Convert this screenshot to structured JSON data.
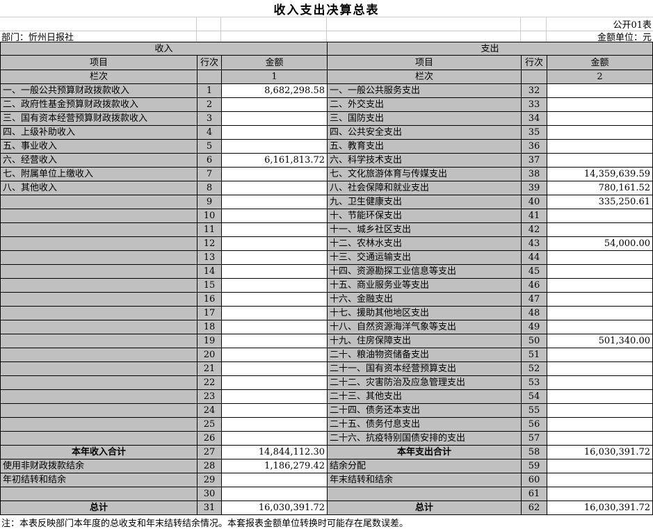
{
  "title": "收入支出决算总表",
  "header": {
    "sheet_code": "公开01表",
    "department": "部门：忻州日报社",
    "unit": "金额单位：元"
  },
  "table": {
    "col_headers": {
      "item": "项目",
      "line": "行次",
      "amount": "金额"
    },
    "lanci_label": "栏次",
    "left": {
      "section": "收入",
      "lanci_value": "1",
      "rows": [
        {
          "item": "一、一般公共预算财政拨款收入",
          "line": "1",
          "amount": "8,682,298.58"
        },
        {
          "item": "二、政府性基金预算财政拨款收入",
          "line": "2",
          "amount": ""
        },
        {
          "item": "三、国有资本经营预算财政拨款收入",
          "line": "3",
          "amount": ""
        },
        {
          "item": "四、上级补助收入",
          "line": "4",
          "amount": ""
        },
        {
          "item": "五、事业收入",
          "line": "5",
          "amount": ""
        },
        {
          "item": "六、经营收入",
          "line": "6",
          "amount": "6,161,813.72"
        },
        {
          "item": "七、附属单位上缴收入",
          "line": "7",
          "amount": ""
        },
        {
          "item": "八、其他收入",
          "line": "8",
          "amount": ""
        },
        {
          "item": "",
          "line": "9",
          "amount": ""
        },
        {
          "item": "",
          "line": "10",
          "amount": ""
        },
        {
          "item": "",
          "line": "11",
          "amount": ""
        },
        {
          "item": "",
          "line": "12",
          "amount": ""
        },
        {
          "item": "",
          "line": "13",
          "amount": ""
        },
        {
          "item": "",
          "line": "14",
          "amount": ""
        },
        {
          "item": "",
          "line": "15",
          "amount": ""
        },
        {
          "item": "",
          "line": "16",
          "amount": ""
        },
        {
          "item": "",
          "line": "17",
          "amount": ""
        },
        {
          "item": "",
          "line": "18",
          "amount": ""
        },
        {
          "item": "",
          "line": "19",
          "amount": ""
        },
        {
          "item": "",
          "line": "20",
          "amount": ""
        },
        {
          "item": "",
          "line": "21",
          "amount": ""
        },
        {
          "item": "",
          "line": "22",
          "amount": ""
        },
        {
          "item": "",
          "line": "23",
          "amount": ""
        },
        {
          "item": "",
          "line": "24",
          "amount": ""
        },
        {
          "item": "",
          "line": "25",
          "amount": ""
        },
        {
          "item": "",
          "line": "26",
          "amount": ""
        },
        {
          "item": "本年收入合计",
          "line": "27",
          "amount": "14,844,112.30",
          "bold": true
        },
        {
          "item": "使用非财政拨款结余",
          "line": "28",
          "amount": "1,186,279.42"
        },
        {
          "item": "年初结转和结余",
          "line": "29",
          "amount": ""
        },
        {
          "item": "",
          "line": "30",
          "amount": ""
        },
        {
          "item": "总计",
          "line": "31",
          "amount": "16,030,391.72",
          "bold": true
        }
      ]
    },
    "right": {
      "section": "支出",
      "lanci_value": "2",
      "rows": [
        {
          "item": "一、一般公共服务支出",
          "line": "32",
          "amount": ""
        },
        {
          "item": "二、外交支出",
          "line": "33",
          "amount": ""
        },
        {
          "item": "三、国防支出",
          "line": "34",
          "amount": ""
        },
        {
          "item": "四、公共安全支出",
          "line": "35",
          "amount": ""
        },
        {
          "item": "五、教育支出",
          "line": "36",
          "amount": ""
        },
        {
          "item": "六、科学技术支出",
          "line": "37",
          "amount": ""
        },
        {
          "item": "七、文化旅游体育与传媒支出",
          "line": "38",
          "amount": "14,359,639.59"
        },
        {
          "item": "八、社会保障和就业支出",
          "line": "39",
          "amount": "780,161.52"
        },
        {
          "item": "九、卫生健康支出",
          "line": "40",
          "amount": "335,250.61"
        },
        {
          "item": "十、节能环保支出",
          "line": "41",
          "amount": ""
        },
        {
          "item": "十一、城乡社区支出",
          "line": "42",
          "amount": ""
        },
        {
          "item": "十二、农林水支出",
          "line": "43",
          "amount": "54,000.00"
        },
        {
          "item": "十三、交通运输支出",
          "line": "44",
          "amount": ""
        },
        {
          "item": "十四、资源勘探工业信息等支出",
          "line": "45",
          "amount": ""
        },
        {
          "item": "十五、商业服务业等支出",
          "line": "46",
          "amount": ""
        },
        {
          "item": "十六、金融支出",
          "line": "47",
          "amount": ""
        },
        {
          "item": "十七、援助其他地区支出",
          "line": "48",
          "amount": ""
        },
        {
          "item": "十八、自然资源海洋气象等支出",
          "line": "49",
          "amount": ""
        },
        {
          "item": "十九、住房保障支出",
          "line": "50",
          "amount": "501,340.00"
        },
        {
          "item": "二十、粮油物资储备支出",
          "line": "51",
          "amount": ""
        },
        {
          "item": "二十一、国有资本经营预算支出",
          "line": "52",
          "amount": ""
        },
        {
          "item": "二十二、灾害防治及应急管理支出",
          "line": "53",
          "amount": ""
        },
        {
          "item": "二十三、其他支出",
          "line": "54",
          "amount": ""
        },
        {
          "item": "二十四、债务还本支出",
          "line": "55",
          "amount": ""
        },
        {
          "item": "二十五、债务付息支出",
          "line": "56",
          "amount": ""
        },
        {
          "item": "二十六、抗疫特别国债安排的支出",
          "line": "57",
          "amount": ""
        },
        {
          "item": "本年支出合计",
          "line": "58",
          "amount": "16,030,391.72",
          "bold": true
        },
        {
          "item": "结余分配",
          "line": "59",
          "amount": ""
        },
        {
          "item": "年末结转和结余",
          "line": "60",
          "amount": ""
        },
        {
          "item": "",
          "line": "61",
          "amount": ""
        },
        {
          "item": "总计",
          "line": "62",
          "amount": "16,030,391.72",
          "bold": true
        }
      ]
    }
  },
  "note": "注：本表反映部门本年度的总收支和年末结转结余情况。本套报表金额单位转换时可能存在尾数误差。",
  "colors": {
    "cell_gray": "#c0c0c0",
    "grid_black": "#000000",
    "light_grid": "#cccccc",
    "error_triangle_green": "#2e8b2e"
  }
}
